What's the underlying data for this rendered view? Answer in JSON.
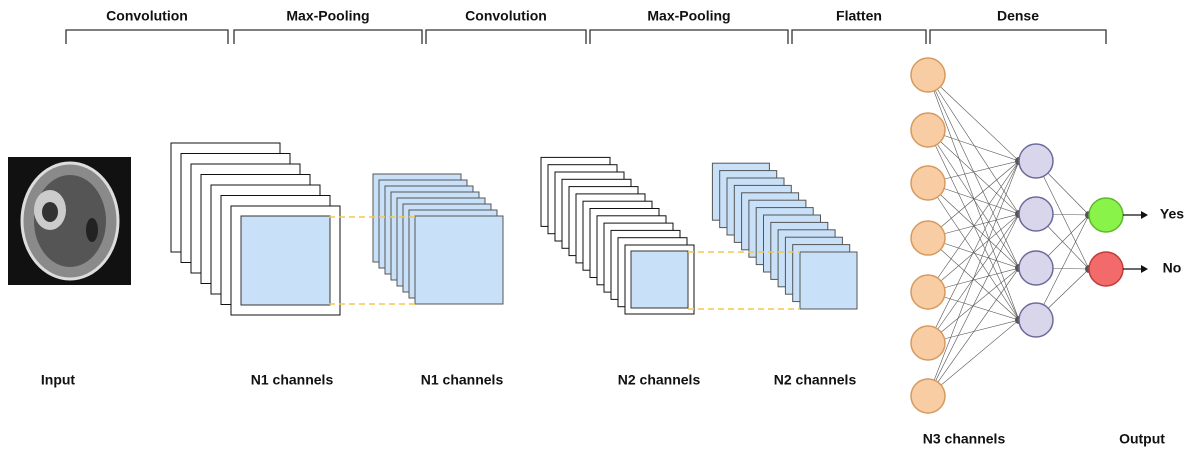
{
  "stages": [
    "Convolution",
    "Max-Pooling",
    "Convolution",
    "Max-Pooling",
    "Flatten",
    "Dense"
  ],
  "labels": {
    "input": "Input",
    "layers": [
      "N1 channels",
      "N1 channels",
      "N2 channels",
      "N2 channels"
    ],
    "dense": "N3 channels",
    "output": "Output"
  },
  "outputs": [
    "Yes",
    "No"
  ]
}
